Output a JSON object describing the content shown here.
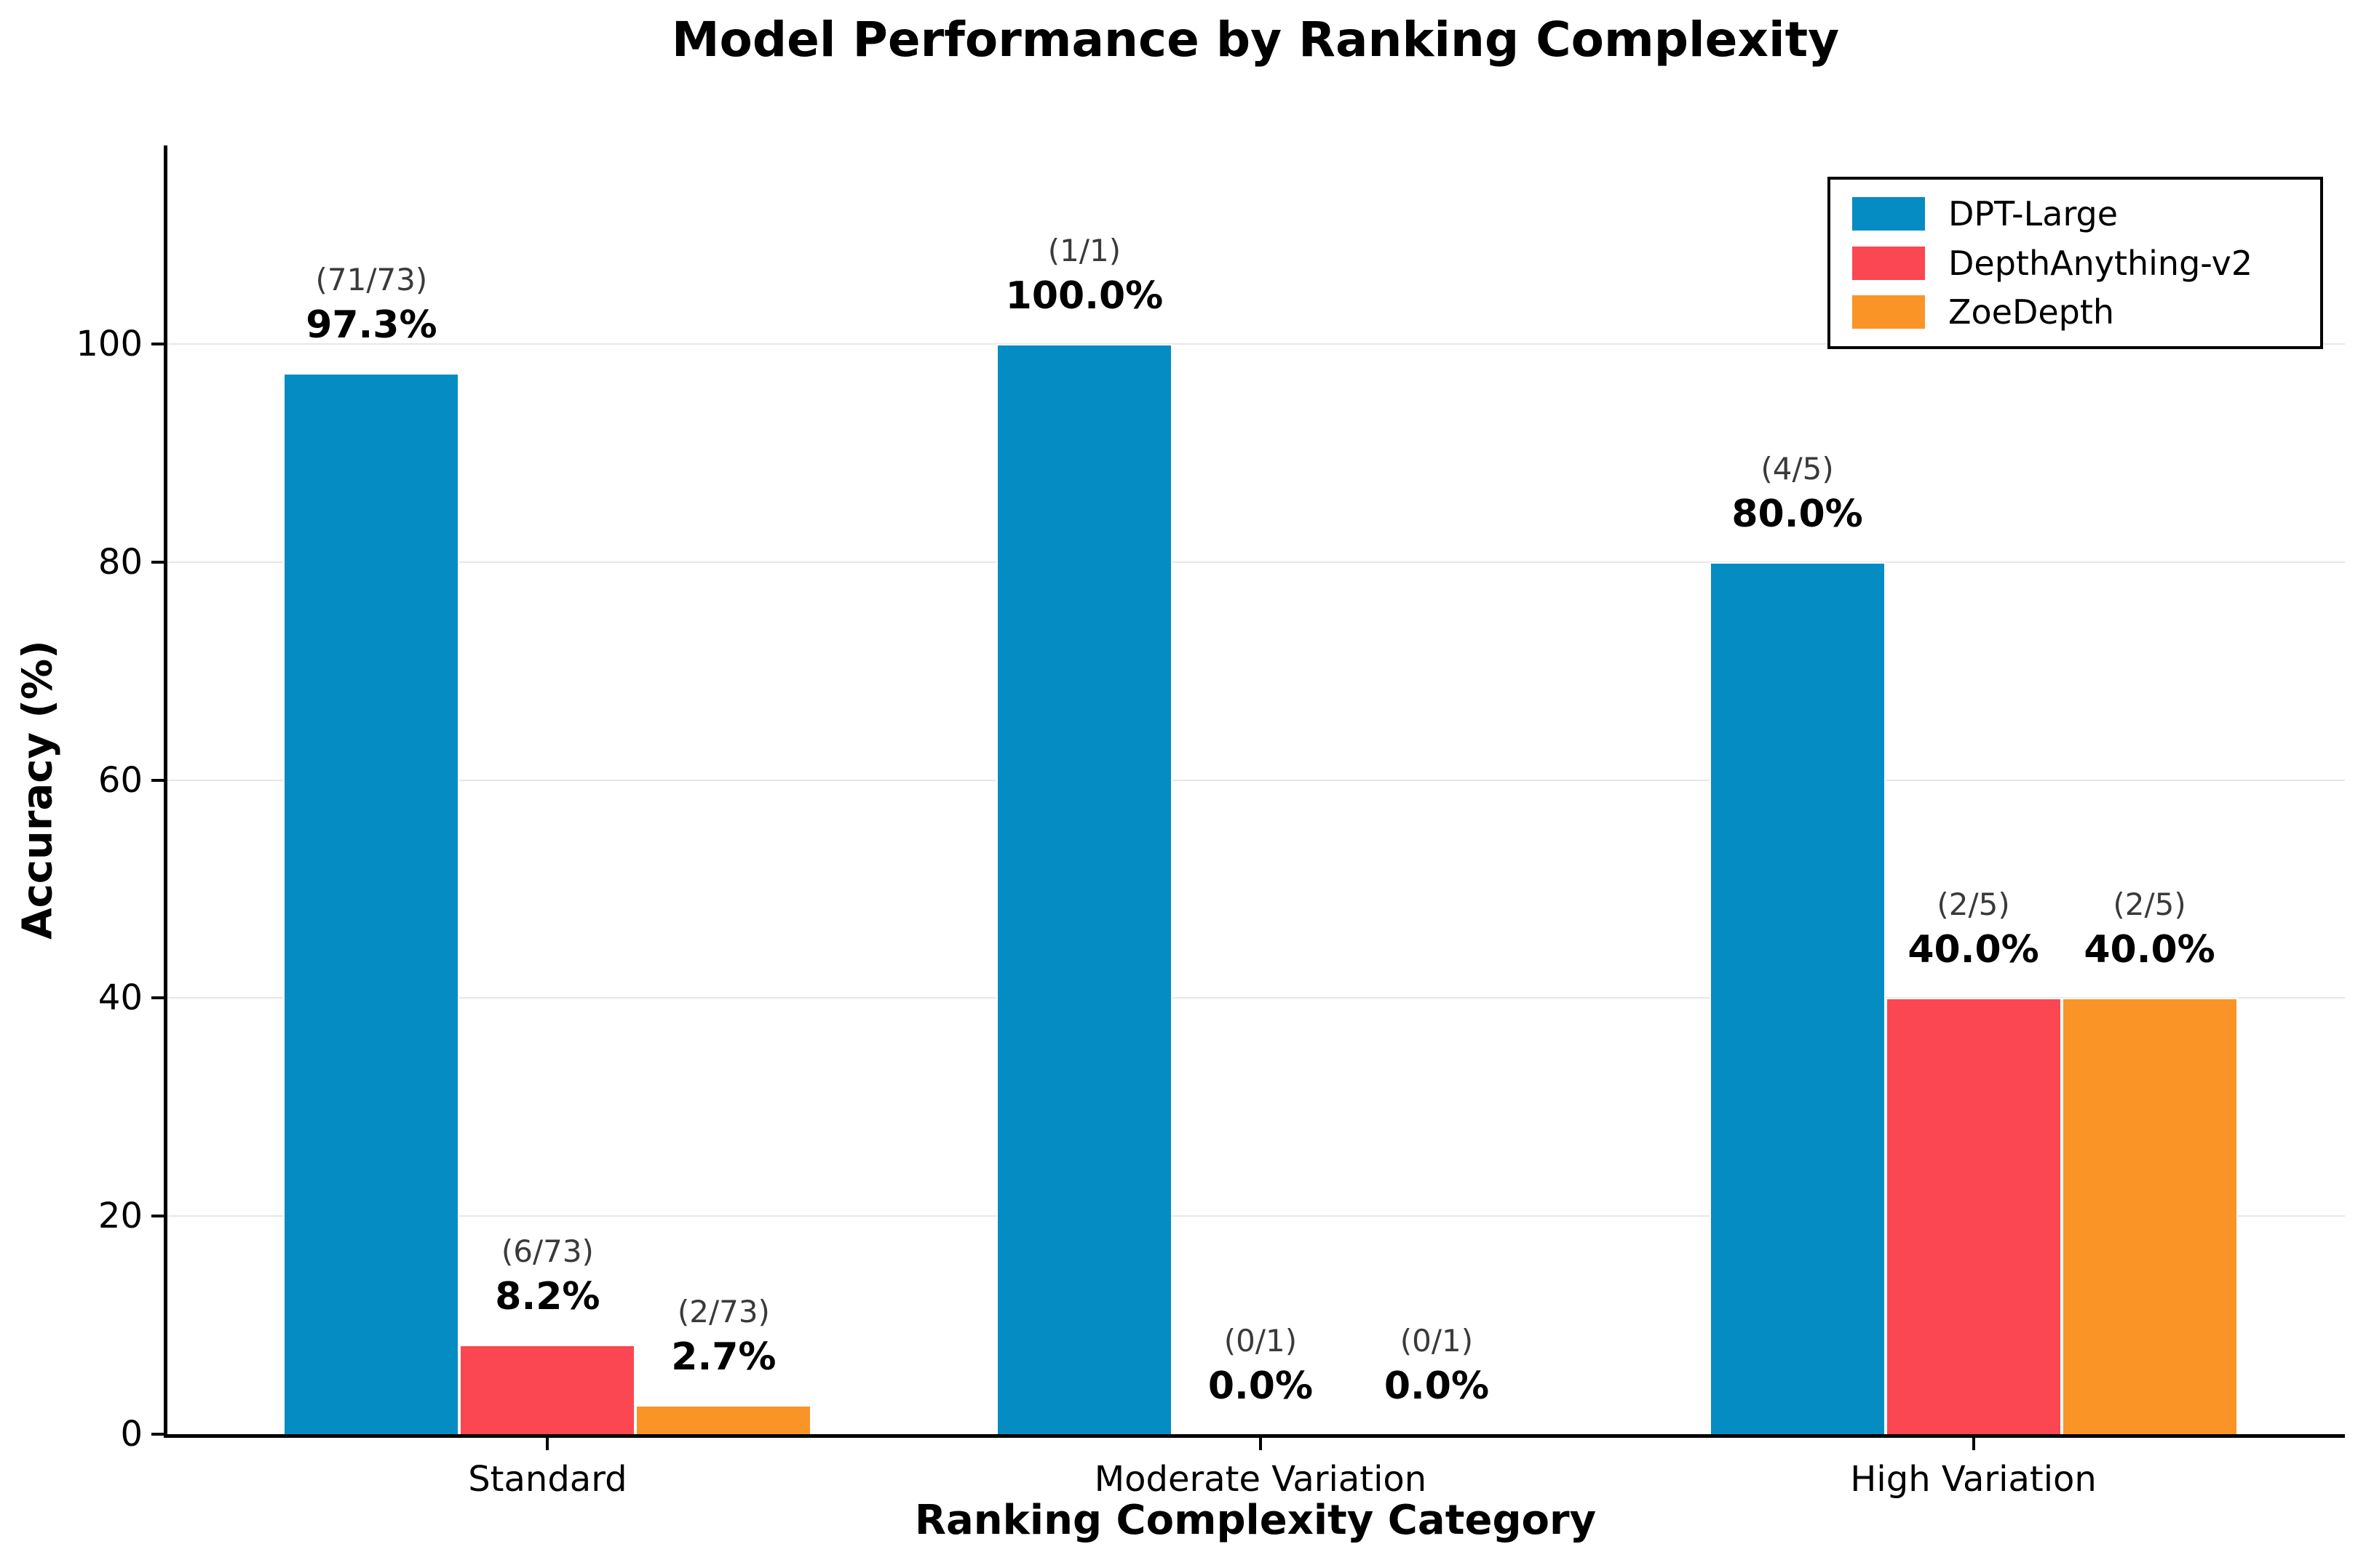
{
  "title": "Model Performance by Ranking Complexity",
  "chart_data": {
    "type": "bar",
    "title": "Model Performance by Ranking Complexity",
    "xlabel": "Ranking Complexity Category",
    "ylabel": "Accuracy (%)",
    "categories": [
      "Standard",
      "Moderate Variation",
      "High Variation"
    ],
    "series": [
      {
        "name": "DPT-Large",
        "color": "#058CC3",
        "values": [
          97.3,
          100.0,
          80.0
        ],
        "counts": [
          "(71/73)",
          "(1/1)",
          "(4/5)"
        ],
        "value_labels": [
          "97.3%",
          "100.0%",
          "80.0%"
        ]
      },
      {
        "name": "DepthAnything-v2",
        "color": "#FA4752",
        "values": [
          8.2,
          0.0,
          40.0
        ],
        "counts": [
          "(6/73)",
          "(0/1)",
          "(2/5)"
        ],
        "value_labels": [
          "8.2%",
          "0.0%",
          "40.0%"
        ]
      },
      {
        "name": "ZoeDepth",
        "color": "#FB9427",
        "values": [
          2.7,
          0.0,
          40.0
        ],
        "counts": [
          "(2/73)",
          "(0/1)",
          "(2/5)"
        ],
        "value_labels": [
          "2.7%",
          "0.0%",
          "40.0%"
        ]
      }
    ],
    "yticks": [
      0,
      20,
      40,
      60,
      80,
      100
    ],
    "ylim": [
      0,
      118
    ],
    "grid": "horizontal",
    "legend_position": "upper right",
    "axis_color": "#000000",
    "grid_color": "#e7e7e7",
    "count_label_color": "#3a3a3a"
  }
}
